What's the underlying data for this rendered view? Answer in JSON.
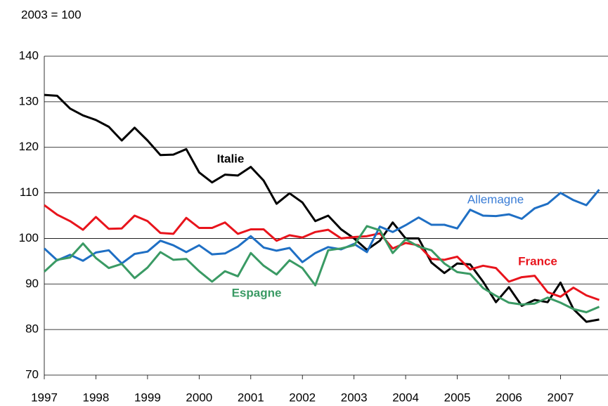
{
  "chart_data": {
    "type": "line",
    "subtitle": "2003 = 100",
    "x": [
      1997,
      1997.25,
      1997.5,
      1997.75,
      1998,
      1998.25,
      1998.5,
      1998.75,
      1999,
      1999.25,
      1999.5,
      1999.75,
      2000,
      2000.25,
      2000.5,
      2000.75,
      2001,
      2001.25,
      2001.5,
      2001.75,
      2002,
      2002.25,
      2002.5,
      2002.75,
      2003,
      2003.25,
      2003.5,
      2003.75,
      2004,
      2004.25,
      2004.5,
      2004.75,
      2005,
      2005.25,
      2005.5,
      2005.75,
      2006,
      2006.25,
      2006.5,
      2006.75,
      2007,
      2007.25,
      2007.5,
      2007.75
    ],
    "xlim": [
      1997,
      2007.92
    ],
    "xticks": [
      1997,
      1998,
      1999,
      2000,
      2001,
      2002,
      2003,
      2004,
      2005,
      2006,
      2007
    ],
    "ylim": [
      70,
      140
    ],
    "yticks": [
      70,
      80,
      90,
      100,
      110,
      120,
      130,
      140
    ],
    "grid": true,
    "series": [
      {
        "name": "Italie",
        "color": "#000000",
        "values": [
          131.5,
          131.3,
          128.5,
          127,
          126,
          124.5,
          121.5,
          124.3,
          121.5,
          118.3,
          118.4,
          119.6,
          114.5,
          112.3,
          114,
          113.8,
          115.7,
          112.7,
          107.6,
          109.9,
          107.9,
          103.8,
          105,
          102,
          100,
          97.5,
          99.5,
          103.5,
          100,
          100,
          94.7,
          92.4,
          94.5,
          94.3,
          90.5,
          86,
          89.3,
          85.2,
          86.5,
          86,
          90.3,
          84.5,
          81.7,
          82.2
        ]
      },
      {
        "name": "France",
        "color": "#e8141c",
        "values": [
          107.3,
          105.2,
          103.8,
          101.9,
          104.7,
          102.1,
          102.2,
          105,
          103.8,
          101.2,
          101,
          104.5,
          102.3,
          102.3,
          103.5,
          101,
          102,
          102,
          99.5,
          100.7,
          100.2,
          101.4,
          101.9,
          100,
          100.3,
          100.5,
          101.1,
          97.8,
          99,
          98.5,
          95.5,
          95.3,
          96,
          93.2,
          94,
          93.5,
          90.5,
          91.5,
          91.8,
          88.2,
          87.2,
          89.2,
          87.5,
          86.5
        ]
      },
      {
        "name": "Allemagne",
        "color": "#1f6fc4",
        "values": [
          97.8,
          95.2,
          96.4,
          95.1,
          96.9,
          97.4,
          94.5,
          96.6,
          97.1,
          99.5,
          98.5,
          97,
          98.5,
          96.5,
          96.7,
          98.2,
          100.5,
          98,
          97.3,
          97.9,
          94.8,
          96.8,
          98.1,
          97.6,
          98.8,
          97,
          102.6,
          101.4,
          102.9,
          104.6,
          103,
          103,
          102.2,
          106.3,
          105,
          104.9,
          105.3,
          104.3,
          106.6,
          107.6,
          110,
          108.4,
          107.3,
          110.7
        ]
      },
      {
        "name": "Espagne",
        "color": "#3a9a64",
        "values": [
          92.7,
          95.3,
          95.8,
          98.9,
          95.7,
          93.5,
          94.4,
          91.3,
          93.6,
          97,
          95.3,
          95.5,
          92.8,
          90.5,
          92.8,
          91.7,
          96.8,
          94,
          92.1,
          95.2,
          93.5,
          89.7,
          97.4,
          97.8,
          98.5,
          102.7,
          101.8,
          96.8,
          99.8,
          98.2,
          97.4,
          94.5,
          92.6,
          92.2,
          89.1,
          87.4,
          85.9,
          85.5,
          85.7,
          87,
          85.9,
          84.5,
          83.8,
          85
        ]
      }
    ]
  }
}
